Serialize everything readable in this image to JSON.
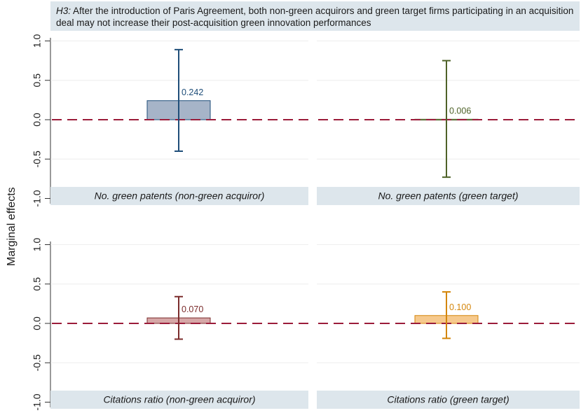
{
  "header": {
    "prefix": "H3:",
    "text": " After the introduction of Paris Agreement, both non-green acquirors and green target firms participating in an acquisition deal may not increase their post-acquisition green innovation performances"
  },
  "chart_data": {
    "type": "bar",
    "ylabel": "Marginal effects",
    "ylim": [
      -1.0,
      1.0
    ],
    "yticks": [
      "1.0",
      "0.5",
      "0.0",
      "-0.5",
      "-1.0"
    ],
    "reference_line": 0,
    "panels": [
      {
        "title": "No. green patents (non-green acquiror)",
        "value": 0.242,
        "label": "0.242",
        "ci": [
          -0.4,
          0.89
        ],
        "color": "#1f4e79",
        "fill": "#a6b4c8"
      },
      {
        "title": "No. green patents (green target)",
        "value": 0.006,
        "label": "0.006",
        "ci": [
          -0.73,
          0.75
        ],
        "color": "#4f6228",
        "fill": "#c4d79b"
      },
      {
        "title": "Citations ratio (non-green acquiror)",
        "value": 0.07,
        "label": "0.070",
        "ci": [
          -0.2,
          0.34
        ],
        "color": "#7b2c2c",
        "fill": "#d6a7a7"
      },
      {
        "title": "Citations ratio (green target)",
        "value": 0.1,
        "label": "0.100",
        "ci": [
          -0.19,
          0.4
        ],
        "color": "#d4860b",
        "fill": "#f6c98d"
      }
    ]
  }
}
